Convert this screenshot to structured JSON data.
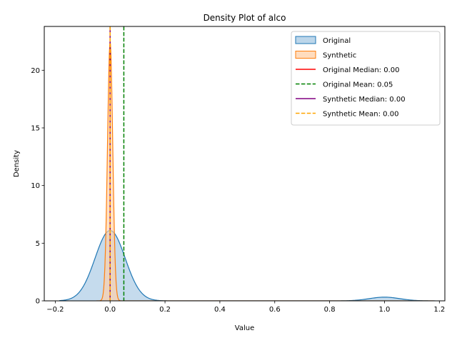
{
  "chart_data": {
    "type": "area",
    "title": "Density Plot of alco",
    "xlabel": "Value",
    "ylabel": "Density",
    "xlim": [
      -0.24,
      1.22
    ],
    "ylim": [
      0,
      23.8
    ],
    "xticks": [
      -0.2,
      0.0,
      0.2,
      0.4,
      0.6,
      0.8,
      1.0,
      1.2
    ],
    "xtick_labels": [
      "−0.2",
      "0.0",
      "0.2",
      "0.4",
      "0.6",
      "0.8",
      "1.0",
      "1.2"
    ],
    "yticks": [
      0,
      5,
      10,
      15,
      20
    ],
    "ytick_labels": [
      "0",
      "5",
      "10",
      "15",
      "20"
    ],
    "legend_position": "top-right",
    "series": [
      {
        "name": "Original",
        "kind": "area",
        "color": "#1f77b4",
        "fill": "#a6c8e3",
        "kde_components": [
          {
            "center": 0.0,
            "sigma": 0.055,
            "peak": 6.1
          },
          {
            "center": 1.0,
            "sigma": 0.055,
            "peak": 0.32
          }
        ],
        "x_range": [
          -0.185,
          1.185
        ]
      },
      {
        "name": "Synthetic",
        "kind": "area",
        "color": "#ff7f0e",
        "fill": "#ffd0a8",
        "kde_components": [
          {
            "center": 0.0,
            "sigma": 0.0095,
            "peak": 22.5
          }
        ],
        "x_range": [
          -0.05,
          1.18
        ]
      },
      {
        "name": "Original Median: 0.00",
        "kind": "vline",
        "value": 0.0,
        "color": "#ff0000",
        "style": "solid"
      },
      {
        "name": "Original Mean: 0.05",
        "kind": "vline",
        "value": 0.05,
        "color": "#008000",
        "style": "dashed"
      },
      {
        "name": "Synthetic Median: 0.00",
        "kind": "vline",
        "value": 0.0,
        "color": "#800080",
        "style": "solid"
      },
      {
        "name": "Synthetic Mean: 0.00",
        "kind": "vline",
        "value": 0.0,
        "color": "#ffa500",
        "style": "dashed"
      }
    ]
  }
}
